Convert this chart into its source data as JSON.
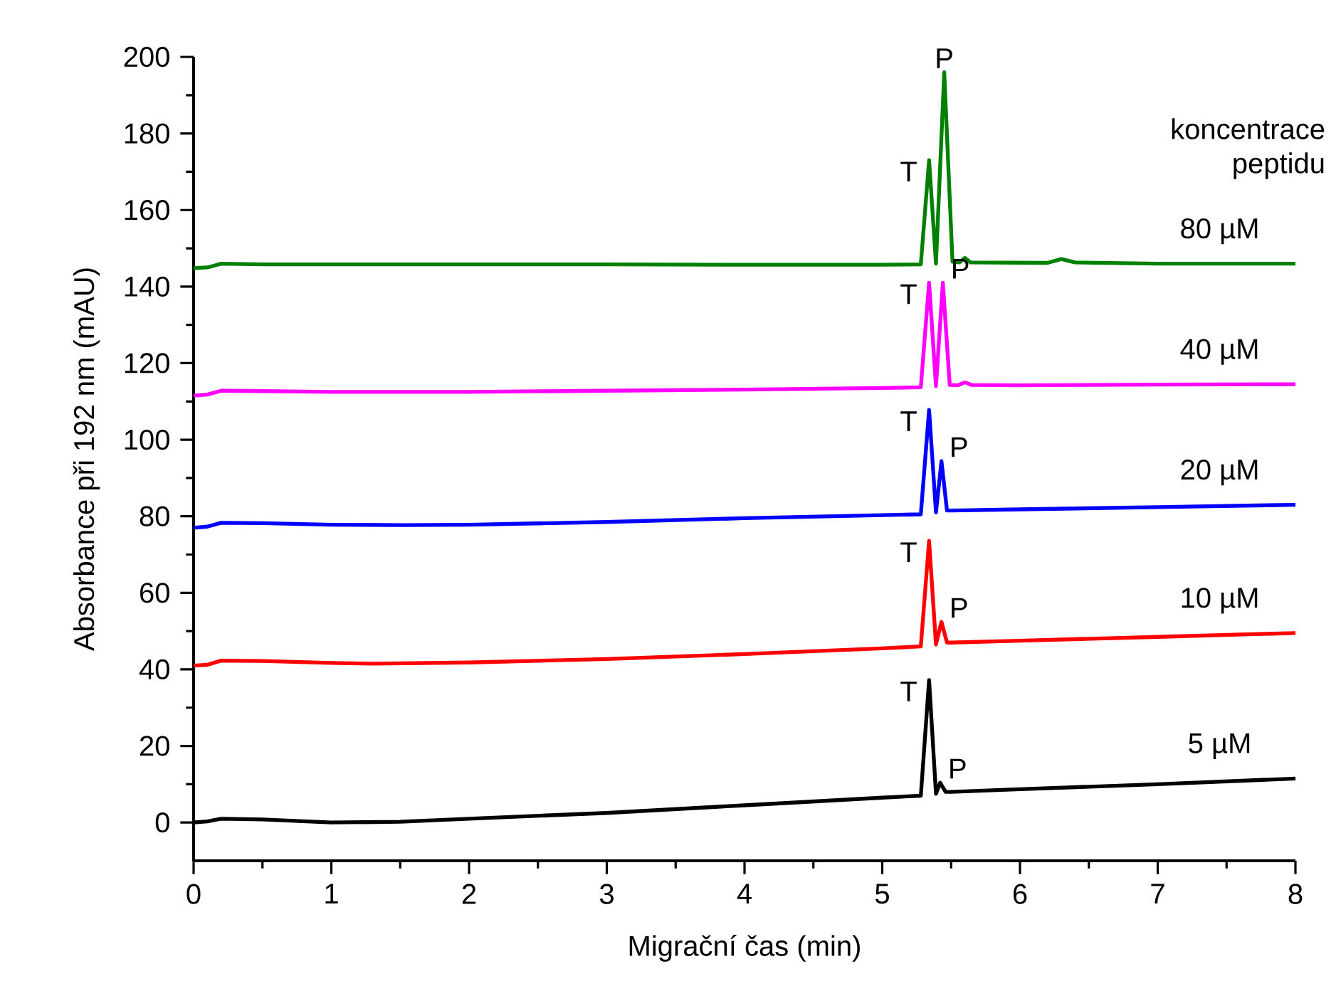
{
  "chart_data": {
    "type": "line",
    "xlabel": "Migrační čas (min)",
    "ylabel": "Absorbance při 192 nm (mAU)",
    "legend_title": "koncentrace peptidu",
    "xlim": [
      0,
      8
    ],
    "ylim": [
      -10,
      200
    ],
    "xticks": [
      0,
      1,
      2,
      3,
      4,
      5,
      6,
      7,
      8
    ],
    "yticks": [
      0,
      20,
      40,
      60,
      80,
      100,
      120,
      140,
      160,
      180,
      200
    ],
    "legend": false,
    "grid": false,
    "marker": "none",
    "line_style": "solid",
    "series": [
      {
        "name": "5 µM",
        "color": "#000000",
        "x": [
          0,
          0.1,
          0.2,
          0.5,
          1,
          1.5,
          2,
          3,
          4,
          5,
          5.28,
          5.34,
          5.39,
          5.42,
          5.46,
          5.5,
          6,
          7,
          8
        ],
        "values": [
          0,
          0.3,
          1,
          0.8,
          0,
          0.2,
          1,
          2.5,
          4.5,
          6.5,
          7,
          37.2,
          7.5,
          10.4,
          8,
          8,
          8.7,
          10,
          11.5
        ]
      },
      {
        "name": "10 µM",
        "color": "#ff0000",
        "x": [
          0,
          0.1,
          0.2,
          0.5,
          1,
          1.3,
          2,
          3,
          4,
          5,
          5.28,
          5.34,
          5.39,
          5.43,
          5.47,
          5.5,
          6,
          7,
          8
        ],
        "values": [
          41,
          41.2,
          42.3,
          42.2,
          41.7,
          41.5,
          41.8,
          42.7,
          44,
          45.5,
          46,
          73.6,
          46.5,
          52.4,
          47,
          47,
          47.5,
          48.5,
          49.5
        ]
      },
      {
        "name": "20 µM",
        "color": "#0000ff",
        "x": [
          0,
          0.1,
          0.2,
          0.5,
          1,
          1.5,
          2,
          3,
          4,
          5,
          5.28,
          5.34,
          5.39,
          5.43,
          5.47,
          5.5,
          6,
          7,
          8
        ],
        "values": [
          77,
          77.3,
          78.3,
          78.2,
          77.8,
          77.7,
          77.8,
          78.5,
          79.5,
          80.3,
          80.5,
          107.8,
          81,
          94.4,
          81.5,
          81.5,
          81.8,
          82.4,
          83
        ]
      },
      {
        "name": "40 µM",
        "color": "#ff00ff",
        "x": [
          0,
          0.1,
          0.2,
          0.5,
          1,
          2,
          3,
          4,
          5,
          5.28,
          5.34,
          5.39,
          5.44,
          5.49,
          5.55,
          5.6,
          5.65,
          6,
          7,
          8
        ],
        "values": [
          111.5,
          111.8,
          112.8,
          112.7,
          112.5,
          112.5,
          112.8,
          113.1,
          113.5,
          113.7,
          141,
          114,
          141,
          114.3,
          114.2,
          115,
          114.3,
          114.2,
          114.4,
          114.5
        ]
      },
      {
        "name": "80 µM",
        "color": "#008000",
        "x": [
          0,
          0.1,
          0.2,
          0.5,
          1,
          2,
          3,
          4,
          5,
          5.28,
          5.34,
          5.39,
          5.45,
          5.51,
          5.56,
          5.6,
          5.64,
          6.2,
          6.3,
          6.4,
          7,
          8
        ],
        "values": [
          144.8,
          145,
          146,
          145.8,
          145.8,
          145.8,
          145.8,
          145.7,
          145.7,
          145.8,
          173,
          146,
          196,
          146.5,
          146.3,
          147.5,
          146.3,
          146.2,
          147.2,
          146.3,
          146,
          146
        ]
      }
    ],
    "annotations": [
      {
        "text": "T",
        "x": 5.34,
        "y": 37.2
      },
      {
        "text": "P",
        "x": 5.42,
        "y": 10.4
      },
      {
        "text": "T",
        "x": 5.34,
        "y": 73.6
      },
      {
        "text": "P",
        "x": 5.43,
        "y": 52.4
      },
      {
        "text": "T",
        "x": 5.34,
        "y": 107.8
      },
      {
        "text": "P",
        "x": 5.43,
        "y": 94.4
      },
      {
        "text": "T",
        "x": 5.34,
        "y": 141
      },
      {
        "text": "P",
        "x": 5.44,
        "y": 141
      },
      {
        "text": "T",
        "x": 5.34,
        "y": 173
      },
      {
        "text": "P",
        "x": 5.45,
        "y": 196
      }
    ]
  }
}
